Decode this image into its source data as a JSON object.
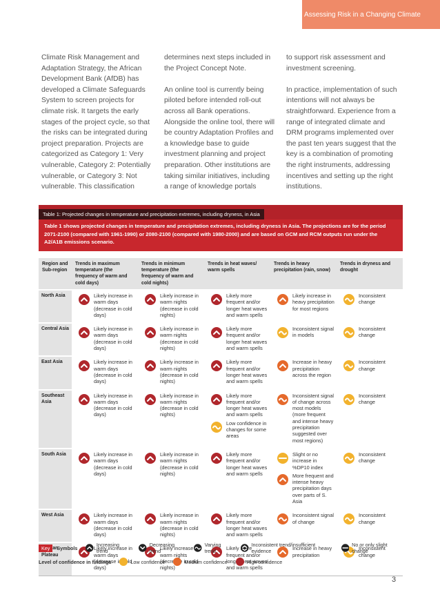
{
  "header": {
    "title": "Assessing Risk in a Changing Climate"
  },
  "body": {
    "columns": [
      [
        "Climate Risk Management and Adaptation Strategy, the African Development Bank (AfDB) has developed a Climate Safeguards System to screen projects for climate risk. It targets the early stages of the project cycle, so that the risks can be integrated during project preparation. Projects are categorized as Category 1: Very vulnerable, Category 2: Potentially vulnerable, or Category 3: Not vulnerable. This classification"
      ],
      [
        "determines next steps included in the Project Concept Note.",
        "An online tool is currently being piloted before intended roll-out across all Bank operations. Alongside the online tool, there will be country Adaptation Profiles and a knowledge base to guide investment planning and project preparation. Other institutions are taking similar initiatives, including a range of knowledge portals"
      ],
      [
        "to support risk assessment and investment screening.",
        "In practice, implementation of such intentions will not always be straightforward. Experience from a range of integrated climate and DRM programs implemented over the past ten years suggest that the key is a combination of promoting the right instruments, addressing incentives and setting up the right institutions."
      ]
    ]
  },
  "table": {
    "caption": "Table 1: Projected changes in temperature and precipitation extremes, including dryness, in Asia",
    "description": "Table 1 shows projected changes in temperature and precipitation extremes, including dryness in Asia. The projections are for the period 2071-2100 (compared with 1961-1990) or 2080-2100 (compared with 1980-2000) and are based on GCM and RCM outputs run under the A2/A1B emissions scenario.",
    "headers": [
      "Region and Sub-region",
      "Trends in maximum temperature (the frequency of warm and cold days)",
      "Trends in minimum temperature (the frequency of warm and cold nights)",
      "Trends in heat waves/ warm spells",
      "Trends in heavy precipitation (rain, snow)",
      "Trends in dryness and drought"
    ],
    "rows": [
      {
        "region": "North Asia",
        "cells": [
          [
            {
              "symbol": "up",
              "color": "#b0272c",
              "text": "Likely increase in warm days (decrease in cold days)"
            }
          ],
          [
            {
              "symbol": "up",
              "color": "#b0272c",
              "text": "Likely increase in warm nights (decrease in cold nights)"
            }
          ],
          [
            {
              "symbol": "up",
              "color": "#b0272c",
              "text": "Likely more frequent and/or longer heat waves and warm spells"
            }
          ],
          [
            {
              "symbol": "up",
              "color": "#e5692b",
              "text": "Likely increase in heavy precipitation for most regions"
            }
          ],
          [
            {
              "symbol": "wave",
              "color": "#f2b22d",
              "text": "Inconsistent change"
            }
          ]
        ]
      },
      {
        "region": "Central Asia",
        "cells": [
          [
            {
              "symbol": "up",
              "color": "#b0272c",
              "text": "Likely increase in warm days (decrease in cold days)"
            }
          ],
          [
            {
              "symbol": "up",
              "color": "#b0272c",
              "text": "Likely increase in warm nights (decrease in cold nights)"
            }
          ],
          [
            {
              "symbol": "up",
              "color": "#b0272c",
              "text": "Likely more frequent and/or longer heat waves and warm spells"
            }
          ],
          [
            {
              "symbol": "wave",
              "color": "#f2b22d",
              "text": "Inconsistent signal in models"
            }
          ],
          [
            {
              "symbol": "wave",
              "color": "#f2b22d",
              "text": "Inconsistent change"
            }
          ]
        ]
      },
      {
        "region": "East Asia",
        "cells": [
          [
            {
              "symbol": "up",
              "color": "#b0272c",
              "text": "Likely increase in warm days (decrease in cold days)"
            }
          ],
          [
            {
              "symbol": "up",
              "color": "#b0272c",
              "text": "Likely increase in warm nights (decrease in cold nights)"
            }
          ],
          [
            {
              "symbol": "up",
              "color": "#b0272c",
              "text": "Likely more frequent and/or longer heat waves and warm spells"
            }
          ],
          [
            {
              "symbol": "up",
              "color": "#e5692b",
              "text": "Increase in heavy precipitation across the region"
            }
          ],
          [
            {
              "symbol": "wave",
              "color": "#f2b22d",
              "text": "Inconsistent change"
            }
          ]
        ]
      },
      {
        "region": "Southeast Asia",
        "cells": [
          [
            {
              "symbol": "up",
              "color": "#b0272c",
              "text": "Likely increase in warm days (decrease in cold days)"
            }
          ],
          [
            {
              "symbol": "up",
              "color": "#b0272c",
              "text": "Likely increase in warm nights (decrease in cold nights)"
            }
          ],
          [
            {
              "symbol": "up",
              "color": "#b0272c",
              "text": "Likely more frequent and/or longer heat waves and warm spells"
            },
            {
              "symbol": "wave",
              "color": "#f2b22d",
              "text": "Low confidence in changes for some areas"
            }
          ],
          [
            {
              "symbol": "wave",
              "color": "#e5692b",
              "text": "Inconsistent signal of change across most models (more frequent and intense heavy precipitation suggested over most regions)"
            }
          ],
          [
            {
              "symbol": "wave",
              "color": "#f2b22d",
              "text": "Inconsistent change"
            }
          ]
        ]
      },
      {
        "region": "South Asia",
        "cells": [
          [
            {
              "symbol": "up",
              "color": "#b0272c",
              "text": "Likely increase in warm days (decrease in cold days)"
            }
          ],
          [
            {
              "symbol": "up",
              "color": "#b0272c",
              "text": "Likely increase in warm nights (decrease in cold nights)"
            }
          ],
          [
            {
              "symbol": "up",
              "color": "#b0272c",
              "text": "Likely more frequent and/or longer heat waves and warm spells"
            }
          ],
          [
            {
              "symbol": "dash",
              "color": "#f2b22d",
              "text": "Slight or no increase in %DP10 index"
            },
            {
              "symbol": "up",
              "color": "#e5692b",
              "text": "More frequent and intense heavy precipitation days over parts of S. Asia"
            }
          ],
          [
            {
              "symbol": "wave",
              "color": "#f2b22d",
              "text": "Inconsistent change"
            }
          ]
        ]
      },
      {
        "region": "West Asia",
        "cells": [
          [
            {
              "symbol": "up",
              "color": "#b0272c",
              "text": "Likely increase in warm days (decrease in cold days)"
            }
          ],
          [
            {
              "symbol": "up",
              "color": "#b0272c",
              "text": "Likely increase in warm nights (decrease in cold nights)"
            }
          ],
          [
            {
              "symbol": "up",
              "color": "#b0272c",
              "text": "Likely more frequent and/or longer heat waves and warm spells"
            }
          ],
          [
            {
              "symbol": "wave",
              "color": "#e5692b",
              "text": "Inconsistent signal of change"
            }
          ],
          [
            {
              "symbol": "wave",
              "color": "#f2b22d",
              "text": "Inconsistent change"
            }
          ]
        ]
      },
      {
        "region": "Tibetan Plateau",
        "cells": [
          [
            {
              "symbol": "up",
              "color": "#b0272c",
              "text": "Likely increase in warm days (decrease in cold days)"
            }
          ],
          [
            {
              "symbol": "up",
              "color": "#b0272c",
              "text": "Likely increase in warm nights (decrease in cold nights)"
            }
          ],
          [
            {
              "symbol": "up",
              "color": "#b0272c",
              "text": "Likely more frequent and/or longer heat waves and warm spells"
            }
          ],
          [
            {
              "symbol": "up",
              "color": "#e5692b",
              "text": "Increase in heavy precipitation"
            }
          ],
          [
            {
              "symbol": "wave",
              "color": "#f2b22d",
              "text": "Inconsistent change"
            }
          ]
        ]
      }
    ]
  },
  "key": {
    "label": "Key",
    "symbols_label": "Symbols",
    "symbols": [
      "Increasing trend",
      "Decreasing trend",
      "Varying trend",
      "Inconsistent trend/insufficient evidence",
      "No or only slight change"
    ],
    "confidence_label": "Level of confidence in findings",
    "confidence": [
      "Low confidence",
      "Medium confidence",
      "High confidence"
    ]
  },
  "page_number": "3"
}
